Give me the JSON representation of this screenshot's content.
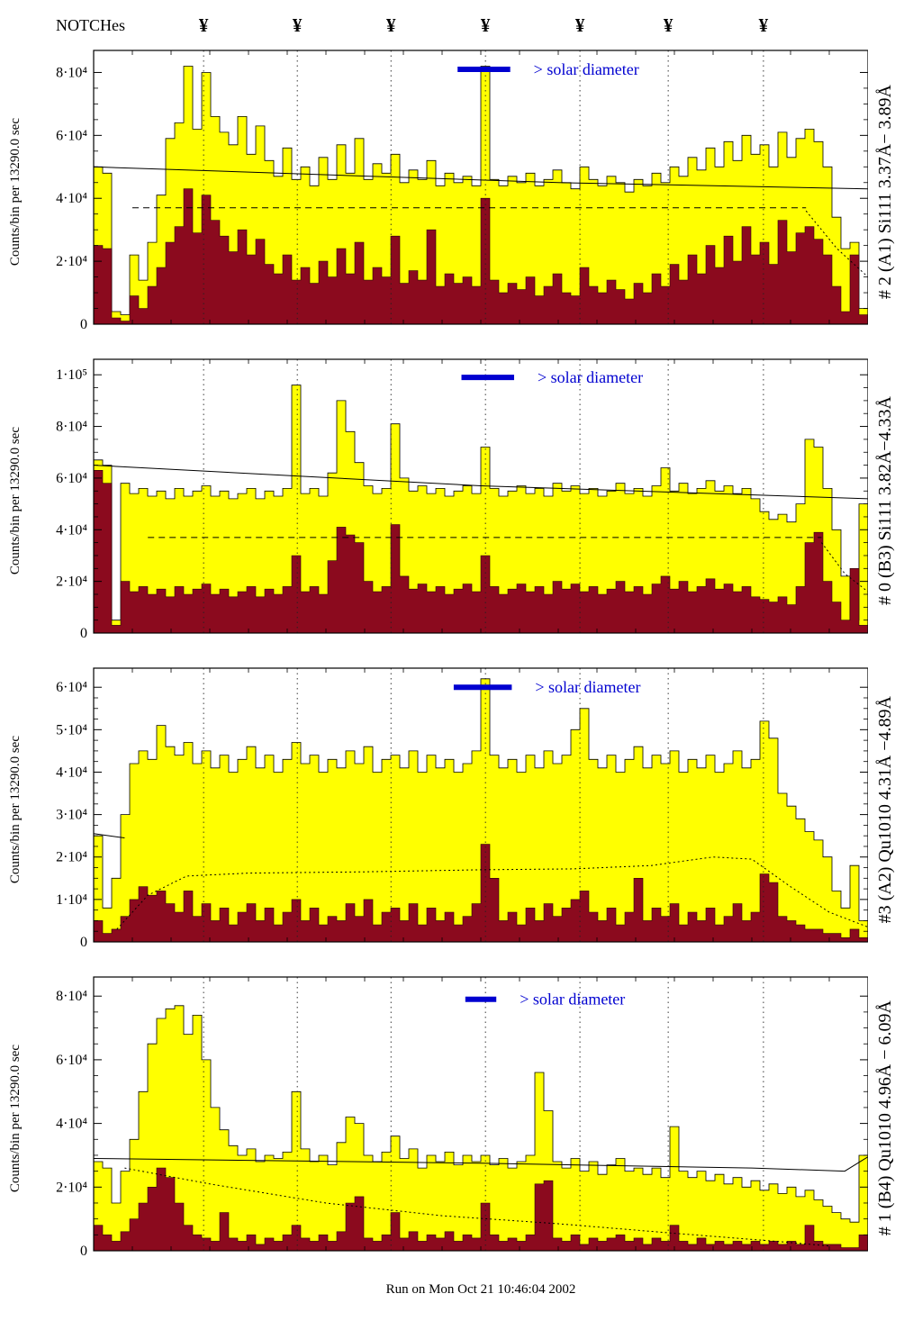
{
  "header": {
    "notches_label": "NOTCHes",
    "notch_symbol": "¥"
  },
  "footer": {
    "run_stamp": "Run on Mon Oct 21 10:46:04 2002"
  },
  "y_axis_label": "Counts/bin per  13290.0 sec",
  "solar_label": "> solar diameter",
  "colors": {
    "yellow": "#ffff00",
    "red": "#8b0a1e",
    "blue": "#0000d0",
    "frame": "#000000"
  },
  "notch_positions": [
    0.142,
    0.263,
    0.384,
    0.506,
    0.628,
    0.742,
    0.865
  ],
  "chart_data": [
    {
      "type": "bar",
      "right_label": "# 2 (A1) Si111  3.37Å− 3.89Å",
      "unit": 10000,
      "ymax": 8.7,
      "yticks": [
        {
          "v": 0,
          "label": "0"
        },
        {
          "v": 2,
          "label": "2·10⁴"
        },
        {
          "v": 4,
          "label": "4·10⁴"
        },
        {
          "v": 6,
          "label": "6·10⁴"
        },
        {
          "v": 8,
          "label": "8·10⁴"
        }
      ],
      "solar": {
        "x": 0.47,
        "w": 0.068,
        "y": 8.1
      },
      "series": [
        {
          "name": "total-counts",
          "color_key": "yellow",
          "values": [
            5.0,
            4.8,
            0.4,
            0.3,
            2.2,
            1.4,
            2.6,
            4.1,
            5.9,
            6.4,
            8.2,
            6.2,
            8.0,
            6.6,
            6.1,
            5.7,
            6.6,
            5.4,
            6.3,
            5.2,
            4.7,
            5.6,
            4.6,
            5.0,
            4.4,
            5.3,
            4.6,
            5.7,
            4.8,
            5.9,
            4.6,
            5.1,
            4.8,
            5.4,
            4.5,
            4.9,
            4.6,
            5.2,
            4.4,
            4.8,
            4.5,
            4.7,
            4.4,
            8.2,
            4.6,
            4.4,
            4.7,
            4.5,
            4.8,
            4.4,
            4.6,
            4.9,
            4.5,
            4.3,
            5.0,
            4.6,
            4.4,
            4.7,
            4.5,
            4.2,
            4.6,
            4.4,
            4.8,
            4.5,
            5.0,
            4.7,
            5.3,
            4.9,
            5.6,
            5.0,
            5.8,
            5.2,
            6.0,
            5.4,
            5.7,
            5.0,
            6.1,
            5.3,
            5.9,
            6.2,
            5.8,
            5.0,
            3.4,
            2.4,
            2.6,
            0.5
          ]
        },
        {
          "name": "sub-counts",
          "color_key": "red",
          "values": [
            2.5,
            2.4,
            0.2,
            0.1,
            0.9,
            0.5,
            1.2,
            1.8,
            2.6,
            3.1,
            4.3,
            2.9,
            4.1,
            3.3,
            2.8,
            2.3,
            3.0,
            2.2,
            2.7,
            1.9,
            1.6,
            2.2,
            1.4,
            1.8,
            1.3,
            2.0,
            1.5,
            2.4,
            1.6,
            2.6,
            1.4,
            1.8,
            1.5,
            2.8,
            1.3,
            1.7,
            1.4,
            3.0,
            1.2,
            1.6,
            1.3,
            1.5,
            1.2,
            4.0,
            1.4,
            1.0,
            1.3,
            1.1,
            1.5,
            0.9,
            1.2,
            1.6,
            1.0,
            0.9,
            1.8,
            1.2,
            1.0,
            1.4,
            1.1,
            0.8,
            1.3,
            1.0,
            1.6,
            1.2,
            1.9,
            1.4,
            2.2,
            1.6,
            2.5,
            1.8,
            2.8,
            2.0,
            3.1,
            2.2,
            2.6,
            1.9,
            3.3,
            2.3,
            2.9,
            3.1,
            2.7,
            2.2,
            1.2,
            0.4,
            2.2,
            0.3
          ]
        }
      ],
      "overlays": [
        {
          "style": "solid",
          "points": [
            [
              0,
              5.0
            ],
            [
              0.6,
              4.5
            ],
            [
              1,
              4.3
            ]
          ]
        },
        {
          "style": "dashed",
          "points": [
            [
              0.05,
              3.7
            ],
            [
              0.92,
              3.7
            ]
          ]
        },
        {
          "style": "dotted",
          "points": [
            [
              0.92,
              3.6
            ],
            [
              0.96,
              2.4
            ],
            [
              1,
              1.5
            ]
          ]
        }
      ]
    },
    {
      "type": "bar",
      "right_label": "# 0 (B3) Si111  3.82Å−4.33Å",
      "unit": 10000,
      "ymax": 10.6,
      "yticks": [
        {
          "v": 0,
          "label": "0"
        },
        {
          "v": 2,
          "label": "2·10⁴"
        },
        {
          "v": 4,
          "label": "4·10⁴"
        },
        {
          "v": 6,
          "label": "6·10⁴"
        },
        {
          "v": 8,
          "label": "8·10⁴"
        },
        {
          "v": 10,
          "label": "1·10⁵"
        }
      ],
      "solar": {
        "x": 0.475,
        "w": 0.068,
        "y": 9.9
      },
      "series": [
        {
          "name": "total-counts",
          "color_key": "yellow",
          "values": [
            6.7,
            6.5,
            0.5,
            5.8,
            5.4,
            5.6,
            5.3,
            5.5,
            5.2,
            5.6,
            5.3,
            5.5,
            5.7,
            5.3,
            5.5,
            5.2,
            5.4,
            5.6,
            5.2,
            5.5,
            5.3,
            5.6,
            9.6,
            5.4,
            5.6,
            5.3,
            6.2,
            9.0,
            7.8,
            6.6,
            5.7,
            5.4,
            5.6,
            8.1,
            6.0,
            5.5,
            5.7,
            5.4,
            5.6,
            5.3,
            5.5,
            5.7,
            5.4,
            7.2,
            5.6,
            5.3,
            5.5,
            5.7,
            5.4,
            5.6,
            5.3,
            5.8,
            5.5,
            5.7,
            5.4,
            5.6,
            5.3,
            5.5,
            5.8,
            5.4,
            5.6,
            5.3,
            5.7,
            6.4,
            5.5,
            5.8,
            5.4,
            5.6,
            5.9,
            5.5,
            5.7,
            5.4,
            5.6,
            5.2,
            4.7,
            4.4,
            4.6,
            4.3,
            5.0,
            7.5,
            7.2,
            5.6,
            4.0,
            2.2,
            0.5,
            5.0
          ]
        },
        {
          "name": "sub-counts",
          "color_key": "red",
          "values": [
            6.3,
            5.8,
            0.3,
            2.0,
            1.6,
            1.8,
            1.5,
            1.7,
            1.4,
            1.8,
            1.5,
            1.7,
            1.9,
            1.5,
            1.7,
            1.4,
            1.6,
            1.8,
            1.4,
            1.7,
            1.5,
            1.8,
            3.0,
            1.6,
            1.8,
            1.5,
            2.8,
            4.1,
            3.8,
            3.5,
            2.0,
            1.6,
            1.8,
            4.2,
            2.2,
            1.7,
            1.9,
            1.6,
            1.8,
            1.5,
            1.7,
            1.9,
            1.6,
            3.0,
            1.8,
            1.5,
            1.7,
            1.9,
            1.6,
            1.8,
            1.5,
            2.0,
            1.7,
            1.9,
            1.6,
            1.8,
            1.5,
            1.7,
            2.0,
            1.6,
            1.8,
            1.5,
            1.9,
            2.2,
            1.7,
            2.0,
            1.6,
            1.8,
            2.1,
            1.7,
            1.9,
            1.6,
            1.8,
            1.4,
            1.3,
            1.2,
            1.4,
            1.1,
            1.8,
            3.5,
            3.9,
            2.0,
            1.2,
            0.5,
            2.5,
            0.3
          ]
        }
      ],
      "overlays": [
        {
          "style": "solid",
          "points": [
            [
              0,
              6.5
            ],
            [
              0.5,
              5.7
            ],
            [
              1,
              5.2
            ]
          ]
        },
        {
          "style": "dashed",
          "points": [
            [
              0.07,
              3.7
            ],
            [
              0.94,
              3.7
            ]
          ]
        },
        {
          "style": "dotted",
          "points": [
            [
              0.94,
              3.5
            ],
            [
              0.97,
              2.3
            ],
            [
              1,
              1.6
            ]
          ]
        }
      ]
    },
    {
      "type": "bar",
      "right_label": "#3 (A2) Qu1010  4.31Å −4.89Å",
      "unit": 10000,
      "ymax": 6.45,
      "yticks": [
        {
          "v": 0,
          "label": "0"
        },
        {
          "v": 1,
          "label": "1·10⁴"
        },
        {
          "v": 2,
          "label": "2·10⁴"
        },
        {
          "v": 3,
          "label": "3·10⁴"
        },
        {
          "v": 4,
          "label": "4·10⁴"
        },
        {
          "v": 5,
          "label": "5·10⁴"
        },
        {
          "v": 6,
          "label": "6·10⁴"
        }
      ],
      "solar": {
        "x": 0.465,
        "w": 0.075,
        "y": 6.0
      },
      "series": [
        {
          "name": "total-counts",
          "color_key": "yellow",
          "values": [
            2.5,
            0.8,
            1.5,
            3.0,
            4.2,
            4.5,
            4.3,
            5.1,
            4.6,
            4.4,
            4.7,
            4.2,
            4.5,
            4.1,
            4.4,
            4.0,
            4.3,
            4.6,
            4.1,
            4.4,
            4.0,
            4.3,
            4.7,
            4.2,
            4.4,
            4.0,
            4.3,
            4.1,
            4.5,
            4.2,
            4.6,
            4.0,
            4.3,
            4.4,
            4.1,
            4.5,
            4.0,
            4.4,
            4.1,
            4.3,
            4.0,
            4.2,
            4.5,
            6.2,
            4.4,
            4.1,
            4.3,
            4.0,
            4.4,
            4.1,
            4.5,
            4.2,
            4.4,
            5.0,
            5.5,
            4.3,
            4.1,
            4.4,
            4.0,
            4.3,
            4.6,
            4.1,
            4.4,
            4.2,
            4.5,
            4.0,
            4.3,
            4.1,
            4.4,
            4.0,
            4.2,
            4.5,
            4.1,
            4.3,
            5.2,
            4.8,
            3.5,
            3.2,
            2.9,
            2.6,
            2.4,
            2.0,
            1.2,
            0.8,
            1.8,
            0.5
          ]
        },
        {
          "name": "sub-counts",
          "color_key": "red",
          "values": [
            0.5,
            0.2,
            0.3,
            0.6,
            1.0,
            1.3,
            1.1,
            1.2,
            0.9,
            0.7,
            1.2,
            0.6,
            0.9,
            0.5,
            0.8,
            0.4,
            0.7,
            0.9,
            0.5,
            0.8,
            0.4,
            0.7,
            1.0,
            0.5,
            0.8,
            0.4,
            0.6,
            0.5,
            0.9,
            0.6,
            1.0,
            0.4,
            0.7,
            0.8,
            0.5,
            0.9,
            0.4,
            0.8,
            0.5,
            0.7,
            0.4,
            0.6,
            0.9,
            2.3,
            1.5,
            0.5,
            0.7,
            0.4,
            0.8,
            0.5,
            0.9,
            0.6,
            0.8,
            1.0,
            1.2,
            0.7,
            0.5,
            0.8,
            0.4,
            0.7,
            1.5,
            0.5,
            0.8,
            0.6,
            0.9,
            0.4,
            0.7,
            0.5,
            0.8,
            0.4,
            0.6,
            0.9,
            0.5,
            0.7,
            1.6,
            1.4,
            0.6,
            0.5,
            0.4,
            0.3,
            0.3,
            0.2,
            0.2,
            0.1,
            0.3,
            0.1
          ]
        }
      ],
      "overlays": [
        {
          "style": "solid",
          "points": [
            [
              0,
              2.55
            ],
            [
              0.04,
              2.45
            ]
          ]
        },
        {
          "style": "dotted",
          "points": [
            [
              0.03,
              0.3
            ],
            [
              0.07,
              1.1
            ],
            [
              0.12,
              1.55
            ],
            [
              0.2,
              1.62
            ],
            [
              0.35,
              1.65
            ],
            [
              0.5,
              1.7
            ],
            [
              0.62,
              1.72
            ],
            [
              0.72,
              1.8
            ],
            [
              0.8,
              2.0
            ],
            [
              0.85,
              1.95
            ],
            [
              0.9,
              1.3
            ],
            [
              0.95,
              0.7
            ],
            [
              1,
              0.35
            ]
          ]
        }
      ]
    },
    {
      "type": "bar",
      "right_label": "# 1 (B4) Qu1010 4.96Å − 6.09Å",
      "unit": 10000,
      "ymax": 8.6,
      "yticks": [
        {
          "v": 0,
          "label": "0"
        },
        {
          "v": 2,
          "label": "2·10⁴"
        },
        {
          "v": 4,
          "label": "4·10⁴"
        },
        {
          "v": 6,
          "label": "6·10⁴"
        },
        {
          "v": 8,
          "label": "8·10⁴"
        }
      ],
      "solar": {
        "x": 0.48,
        "w": 0.04,
        "y": 7.9
      },
      "series": [
        {
          "name": "total-counts",
          "color_key": "yellow",
          "values": [
            2.8,
            2.6,
            1.5,
            2.5,
            3.5,
            5.0,
            6.5,
            7.3,
            7.6,
            7.7,
            6.8,
            7.4,
            6.0,
            4.5,
            3.8,
            3.3,
            3.0,
            3.2,
            2.8,
            3.0,
            2.9,
            3.1,
            5.0,
            3.2,
            2.8,
            3.0,
            2.7,
            3.4,
            4.2,
            4.0,
            3.0,
            2.8,
            3.1,
            3.6,
            2.9,
            3.2,
            2.6,
            3.0,
            2.8,
            3.1,
            2.7,
            3.0,
            2.8,
            3.0,
            2.7,
            2.9,
            2.6,
            2.8,
            3.0,
            5.6,
            4.4,
            2.8,
            2.6,
            2.9,
            2.5,
            2.8,
            2.4,
            2.7,
            2.9,
            2.5,
            2.6,
            2.4,
            2.6,
            2.3,
            3.9,
            2.5,
            2.3,
            2.5,
            2.2,
            2.4,
            2.1,
            2.3,
            2.0,
            2.2,
            1.9,
            2.1,
            1.8,
            2.0,
            1.7,
            1.9,
            1.6,
            1.4,
            1.2,
            1.0,
            0.9,
            3.0
          ]
        },
        {
          "name": "sub-counts",
          "color_key": "red",
          "values": [
            0.8,
            0.5,
            0.3,
            0.6,
            1.0,
            1.5,
            2.0,
            2.6,
            2.3,
            1.5,
            0.8,
            0.5,
            0.4,
            0.3,
            1.2,
            0.4,
            0.3,
            0.5,
            0.2,
            0.4,
            0.3,
            0.5,
            0.8,
            0.4,
            0.3,
            0.5,
            0.3,
            0.6,
            1.5,
            1.7,
            0.4,
            0.3,
            0.5,
            1.2,
            0.4,
            0.6,
            0.3,
            0.5,
            0.4,
            0.6,
            0.3,
            0.5,
            0.4,
            1.5,
            0.5,
            0.3,
            0.4,
            0.3,
            0.5,
            2.1,
            2.2,
            0.4,
            0.3,
            0.5,
            0.2,
            0.4,
            0.3,
            0.4,
            0.5,
            0.3,
            0.4,
            0.2,
            0.4,
            0.3,
            0.8,
            0.3,
            0.2,
            0.4,
            0.2,
            0.3,
            0.2,
            0.3,
            0.2,
            0.3,
            0.2,
            0.3,
            0.2,
            0.3,
            0.2,
            0.8,
            0.3,
            0.2,
            0.2,
            0.1,
            0.1,
            0.5
          ]
        }
      ],
      "overlays": [
        {
          "style": "solid",
          "points": [
            [
              0,
              2.9
            ],
            [
              0.5,
              2.75
            ],
            [
              0.85,
              2.6
            ],
            [
              0.97,
              2.5
            ],
            [
              1,
              2.95
            ]
          ]
        },
        {
          "style": "dotted",
          "points": [
            [
              0.04,
              2.6
            ],
            [
              0.15,
              2.1
            ],
            [
              0.3,
              1.5
            ],
            [
              0.45,
              1.1
            ],
            [
              0.6,
              0.85
            ],
            [
              0.75,
              0.55
            ],
            [
              0.88,
              0.3
            ],
            [
              0.95,
              0.15
            ]
          ]
        }
      ]
    }
  ]
}
